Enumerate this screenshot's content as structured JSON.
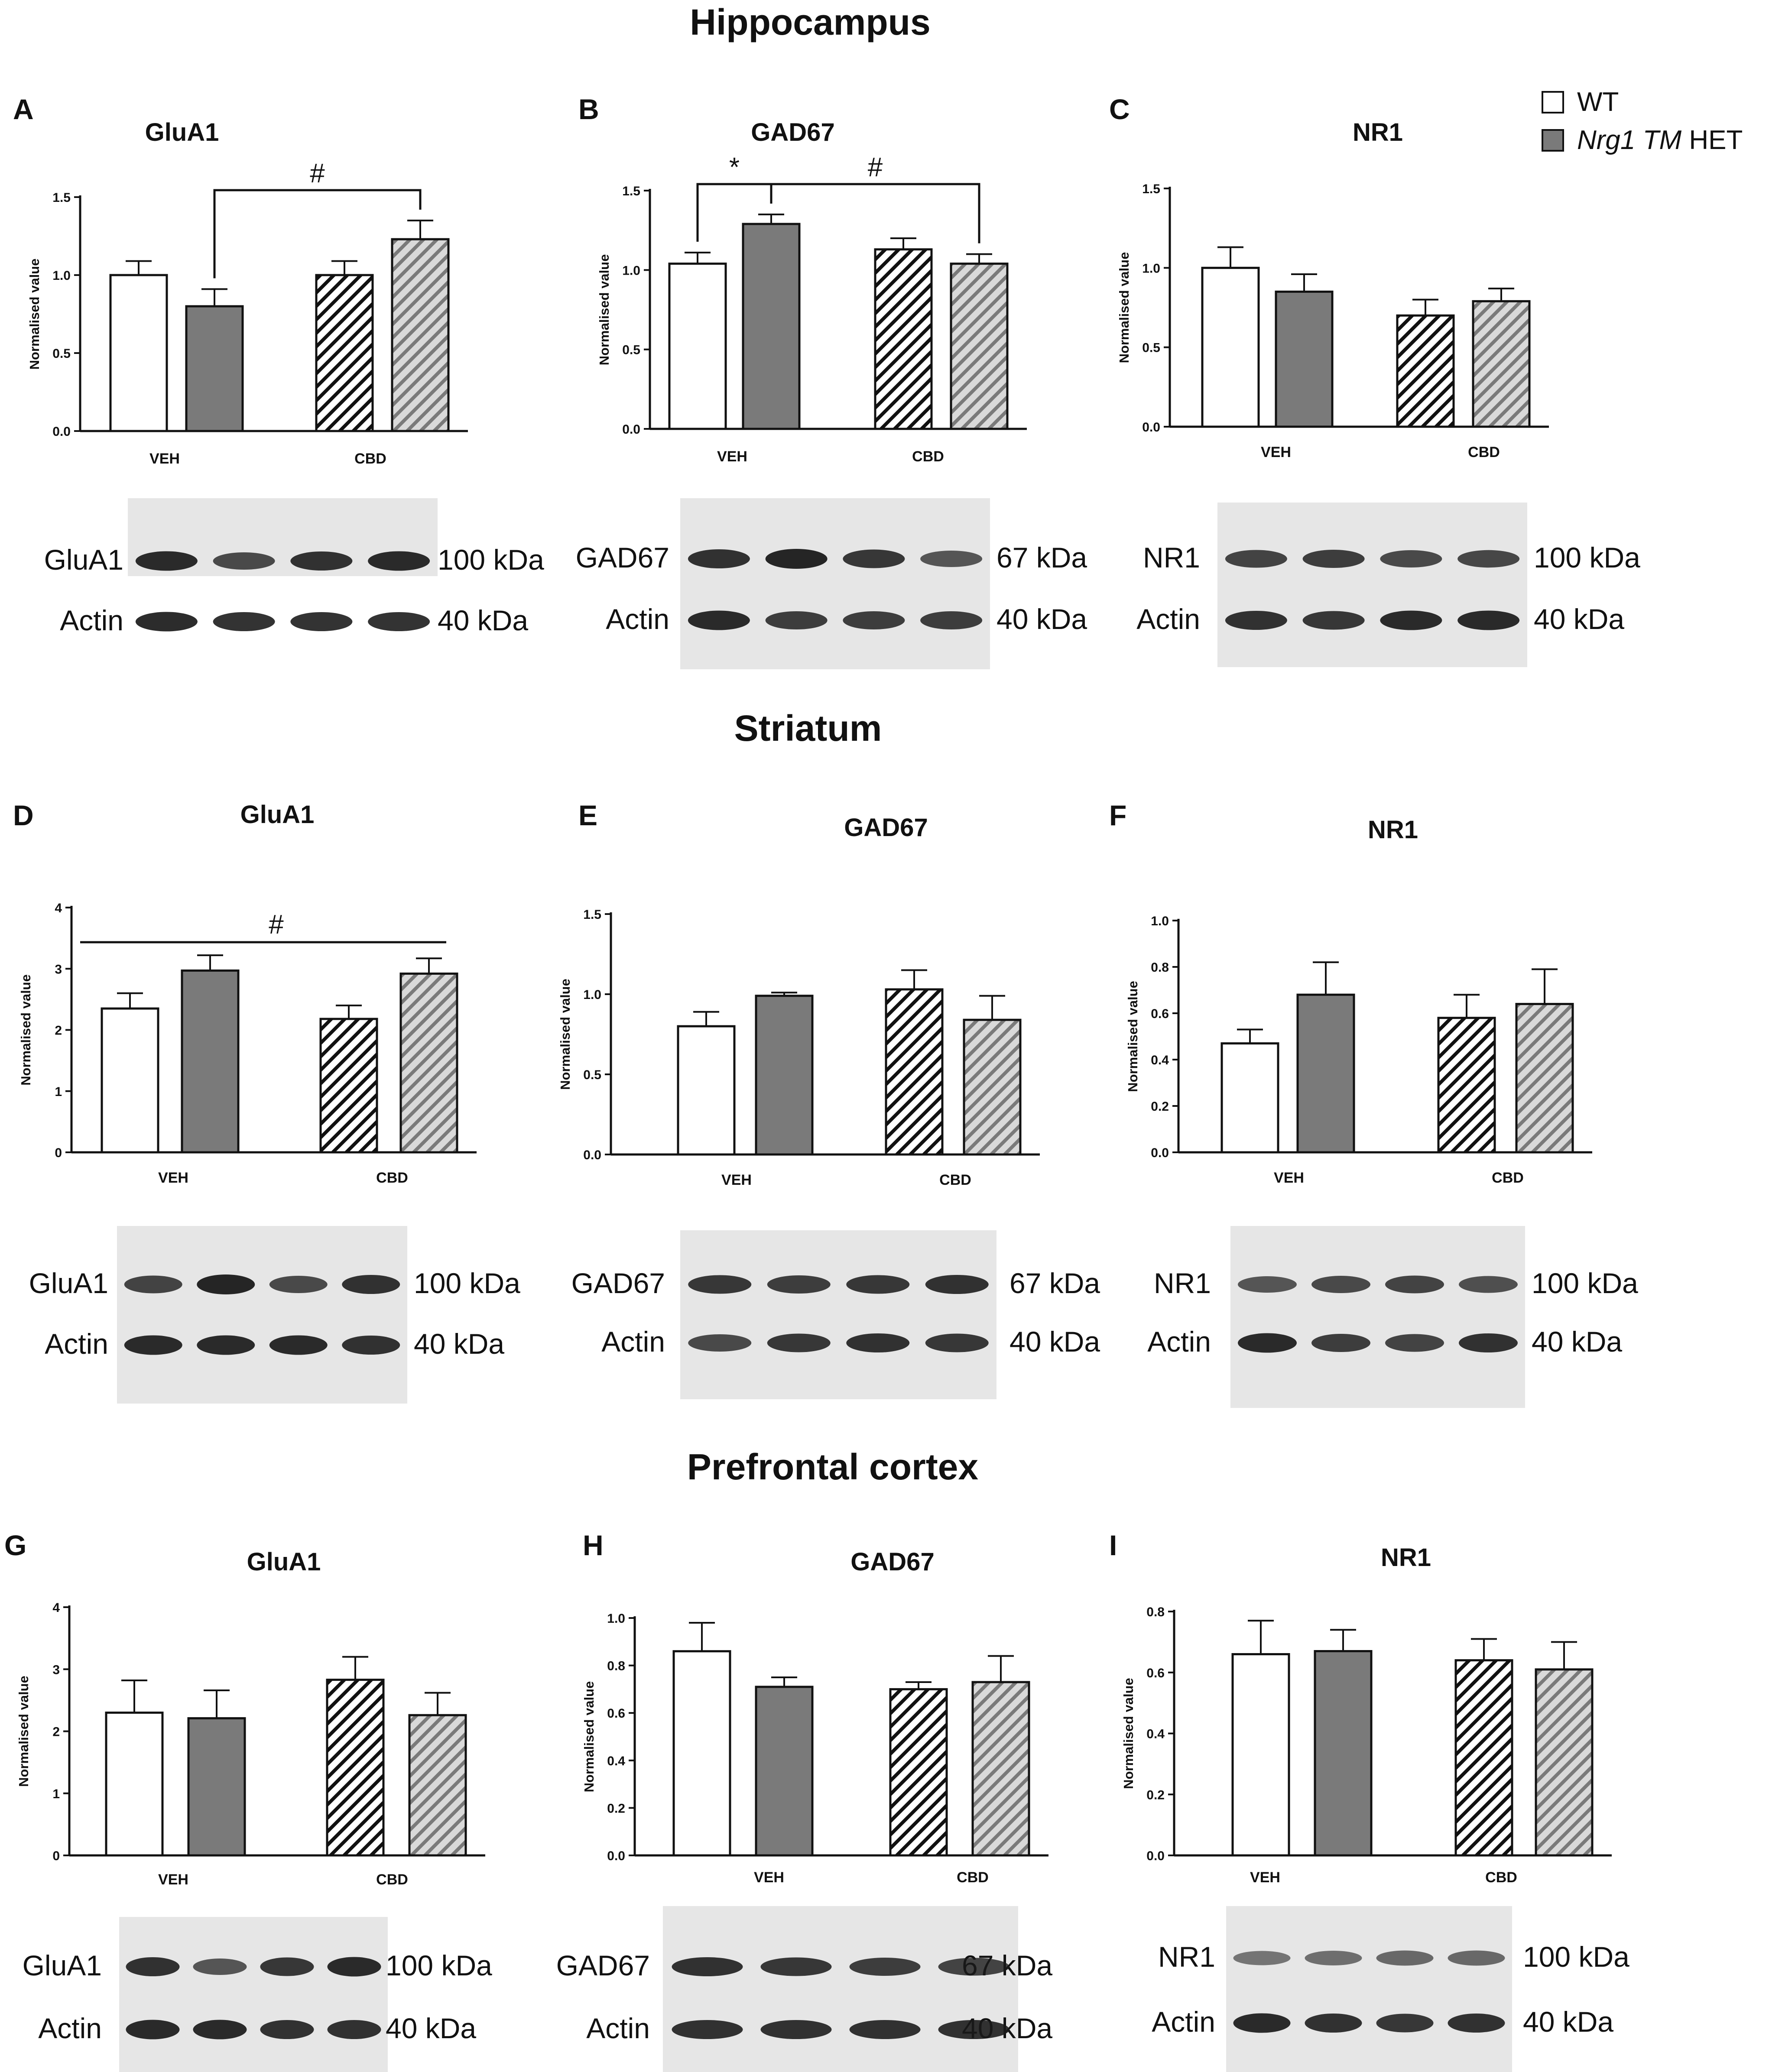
{
  "legend": {
    "items": [
      {
        "label": "WT",
        "fill": "white"
      },
      {
        "label_italic": "Nrg1 TM",
        "label_rest": " HET",
        "fill": "solid"
      }
    ]
  },
  "sections": [
    {
      "title": "Hippocampus"
    },
    {
      "title": "Striatum"
    },
    {
      "title": "Prefrontal cortex"
    }
  ],
  "colors": {
    "bar_gray": "#7a7a7a",
    "stroke": "#111111",
    "blot_background": "#e6e6e6",
    "band": "#1a1a1a"
  },
  "chart_data": [
    {
      "panel": "A",
      "title": "GluA1",
      "type": "bar",
      "ylabel": "Normalised value",
      "yticks": [
        0.0,
        0.5,
        1.0,
        1.5
      ],
      "ytick_labels": [
        "0.0",
        "0.5",
        "1.0",
        "1.5"
      ],
      "ylim": [
        0,
        1.5
      ],
      "categories": [
        "VEH",
        "CBD"
      ],
      "series": [
        {
          "name": "WT",
          "values": [
            1.0,
            1.0
          ],
          "errors": [
            0.09,
            0.09
          ]
        },
        {
          "name": "Nrg1 TM HET",
          "values": [
            0.8,
            1.23
          ],
          "errors": [
            0.11,
            0.12
          ]
        }
      ],
      "annotations": [
        {
          "type": "bracket",
          "label": "#",
          "from_bar": 1,
          "to_bar": 3
        }
      ]
    },
    {
      "panel": "B",
      "title": "GAD67",
      "type": "bar",
      "ylabel": "Normalised value",
      "yticks": [
        0.0,
        0.5,
        1.0,
        1.5
      ],
      "ytick_labels": [
        "0.0",
        "0.5",
        "1.0",
        "1.5"
      ],
      "ylim": [
        0,
        1.5
      ],
      "categories": [
        "VEH",
        "CBD"
      ],
      "series": [
        {
          "name": "WT",
          "values": [
            1.04,
            1.13
          ],
          "errors": [
            0.07,
            0.07
          ]
        },
        {
          "name": "Nrg1 TM HET",
          "values": [
            1.29,
            1.04
          ],
          "errors": [
            0.06,
            0.06
          ]
        }
      ],
      "annotations": [
        {
          "type": "bracket",
          "label": "*",
          "from_bar": 0,
          "to_bar": 1
        },
        {
          "type": "bracket",
          "label": "#",
          "from_bar": 1,
          "to_bar": 3
        }
      ]
    },
    {
      "panel": "C",
      "title": "NR1",
      "type": "bar",
      "ylabel": "Normalised value",
      "yticks": [
        0.0,
        0.5,
        1.0,
        1.5
      ],
      "ytick_labels": [
        "0.0",
        "0.5",
        "1.0",
        "1.5"
      ],
      "ylim": [
        0,
        1.5
      ],
      "categories": [
        "VEH",
        "CBD"
      ],
      "series": [
        {
          "name": "WT",
          "values": [
            1.0,
            0.7
          ],
          "errors": [
            0.13,
            0.1
          ]
        },
        {
          "name": "Nrg1 TM HET",
          "values": [
            0.85,
            0.79
          ],
          "errors": [
            0.11,
            0.08
          ]
        }
      ],
      "annotations": []
    },
    {
      "panel": "D",
      "title": "GluA1",
      "type": "bar",
      "ylabel": "Normalised value",
      "yticks": [
        0,
        1,
        2,
        3,
        4
      ],
      "ytick_labels": [
        "0",
        "1",
        "2",
        "3",
        "4"
      ],
      "ylim": [
        0,
        4
      ],
      "categories": [
        "VEH",
        "CBD"
      ],
      "series": [
        {
          "name": "WT",
          "values": [
            2.35,
            2.18
          ],
          "errors": [
            0.25,
            0.22
          ]
        },
        {
          "name": "Nrg1 TM HET",
          "values": [
            2.97,
            2.92
          ],
          "errors": [
            0.25,
            0.25
          ]
        }
      ],
      "annotations": [
        {
          "type": "line",
          "label": "#",
          "from_bar": 0,
          "to_bar": 3
        }
      ]
    },
    {
      "panel": "E",
      "title": "GAD67",
      "type": "bar",
      "ylabel": "Normalised value",
      "yticks": [
        0.0,
        0.5,
        1.0,
        1.5
      ],
      "ytick_labels": [
        "0.0",
        "0.5",
        "1.0",
        "1.5"
      ],
      "ylim": [
        0,
        1.5
      ],
      "categories": [
        "VEH",
        "CBD"
      ],
      "series": [
        {
          "name": "WT",
          "values": [
            0.8,
            1.03
          ],
          "errors": [
            0.09,
            0.12
          ]
        },
        {
          "name": "Nrg1 TM HET",
          "values": [
            0.99,
            0.84
          ],
          "errors": [
            0.02,
            0.15
          ]
        }
      ],
      "annotations": []
    },
    {
      "panel": "F",
      "title": "NR1",
      "type": "bar",
      "ylabel": "Normalised value",
      "yticks": [
        0.0,
        0.2,
        0.4,
        0.6,
        0.8,
        1.0
      ],
      "ytick_labels": [
        "0.0",
        "0.2",
        "0.4",
        "0.6",
        "0.8",
        "1.0"
      ],
      "ylim": [
        0,
        1.0
      ],
      "categories": [
        "VEH",
        "CBD"
      ],
      "series": [
        {
          "name": "WT",
          "values": [
            0.47,
            0.58
          ],
          "errors": [
            0.06,
            0.1
          ]
        },
        {
          "name": "Nrg1 TM HET",
          "values": [
            0.68,
            0.64
          ],
          "errors": [
            0.14,
            0.15
          ]
        }
      ],
      "annotations": []
    },
    {
      "panel": "G",
      "title": "GluA1",
      "type": "bar",
      "ylabel": "Normalised value",
      "yticks": [
        0,
        1,
        2,
        3,
        4
      ],
      "ytick_labels": [
        "0",
        "1",
        "2",
        "3",
        "4"
      ],
      "ylim": [
        0,
        4
      ],
      "categories": [
        "VEH",
        "CBD"
      ],
      "series": [
        {
          "name": "WT",
          "values": [
            2.3,
            2.83
          ],
          "errors": [
            0.52,
            0.37
          ]
        },
        {
          "name": "Nrg1 TM HET",
          "values": [
            2.21,
            2.26
          ],
          "errors": [
            0.45,
            0.36
          ]
        }
      ],
      "annotations": []
    },
    {
      "panel": "H",
      "title": "GAD67",
      "type": "bar",
      "ylabel": "Normalised value",
      "yticks": [
        0.0,
        0.2,
        0.4,
        0.6,
        0.8,
        1.0
      ],
      "ytick_labels": [
        "0.0",
        "0.2",
        "0.4",
        "0.6",
        "0.8",
        "1.0"
      ],
      "ylim": [
        0,
        1.0
      ],
      "categories": [
        "VEH",
        "CBD"
      ],
      "series": [
        {
          "name": "WT",
          "values": [
            0.86,
            0.7
          ],
          "errors": [
            0.12,
            0.03
          ]
        },
        {
          "name": "Nrg1 TM HET",
          "values": [
            0.71,
            0.73
          ],
          "errors": [
            0.04,
            0.11
          ]
        }
      ],
      "annotations": []
    },
    {
      "panel": "I",
      "title": "NR1",
      "type": "bar",
      "ylabel": "Normalised value",
      "yticks": [
        0.0,
        0.2,
        0.4,
        0.6,
        0.8
      ],
      "ytick_labels": [
        "0.0",
        "0.2",
        "0.4",
        "0.6",
        "0.8"
      ],
      "ylim": [
        0,
        0.8
      ],
      "categories": [
        "VEH",
        "CBD"
      ],
      "series": [
        {
          "name": "WT",
          "values": [
            0.66,
            0.64
          ],
          "errors": [
            0.11,
            0.07
          ]
        },
        {
          "name": "Nrg1 TM HET",
          "values": [
            0.67,
            0.61
          ],
          "errors": [
            0.07,
            0.09
          ]
        }
      ],
      "annotations": []
    }
  ],
  "blots": [
    {
      "panel": "A",
      "rows": [
        {
          "protein": "GluA1",
          "size": "100 kDa",
          "band_intensity": [
            0.95,
            0.7,
            0.9,
            0.95
          ]
        },
        {
          "protein": "Actin",
          "size": "40 kDa",
          "band_intensity": [
            0.95,
            0.9,
            0.9,
            0.9
          ]
        }
      ]
    },
    {
      "panel": "B",
      "rows": [
        {
          "protein": "GAD67",
          "size": "67 kDa",
          "band_intensity": [
            0.9,
            1.0,
            0.85,
            0.6
          ]
        },
        {
          "protein": "Actin",
          "size": "40 kDa",
          "band_intensity": [
            0.95,
            0.8,
            0.8,
            0.8
          ]
        }
      ]
    },
    {
      "panel": "C",
      "rows": [
        {
          "protein": "NR1",
          "size": "100 kDa",
          "band_intensity": [
            0.75,
            0.8,
            0.7,
            0.72
          ]
        },
        {
          "protein": "Actin",
          "size": "40 kDa",
          "band_intensity": [
            0.9,
            0.85,
            0.95,
            0.95
          ]
        }
      ]
    },
    {
      "panel": "D",
      "rows": [
        {
          "protein": "GluA1",
          "size": "100 kDa",
          "band_intensity": [
            0.75,
            1.0,
            0.7,
            0.9
          ]
        },
        {
          "protein": "Actin",
          "size": "40 kDa",
          "band_intensity": [
            0.95,
            0.95,
            0.95,
            0.9
          ]
        }
      ]
    },
    {
      "panel": "E",
      "rows": [
        {
          "protein": "GAD67",
          "size": "67 kDa",
          "band_intensity": [
            0.85,
            0.8,
            0.85,
            0.9
          ]
        },
        {
          "protein": "Actin",
          "size": "40 kDa",
          "band_intensity": [
            0.7,
            0.85,
            0.9,
            0.85
          ]
        }
      ]
    },
    {
      "panel": "F",
      "rows": [
        {
          "protein": "NR1",
          "size": "100 kDa",
          "band_intensity": [
            0.6,
            0.7,
            0.75,
            0.65
          ]
        },
        {
          "protein": "Actin",
          "size": "40 kDa",
          "band_intensity": [
            0.95,
            0.8,
            0.75,
            0.9
          ]
        }
      ]
    },
    {
      "panel": "G",
      "rows": [
        {
          "protein": "GluA1",
          "size": "100 kDa",
          "band_intensity": [
            0.9,
            0.6,
            0.85,
            0.95
          ]
        },
        {
          "protein": "Actin",
          "size": "40 kDa",
          "band_intensity": [
            0.95,
            0.95,
            0.9,
            0.9
          ]
        }
      ]
    },
    {
      "panel": "H",
      "rows": [
        {
          "protein": "GAD67",
          "size": "67 kDa",
          "band_intensity": [
            0.9,
            0.85,
            0.8,
            0.75
          ]
        },
        {
          "protein": "Actin",
          "size": "40 kDa",
          "band_intensity": [
            0.9,
            0.9,
            0.9,
            0.9
          ]
        }
      ]
    },
    {
      "panel": "I",
      "rows": [
        {
          "protein": "NR1",
          "size": "100 kDa",
          "band_intensity": [
            0.35,
            0.4,
            0.45,
            0.45
          ]
        },
        {
          "protein": "Actin",
          "size": "40 kDa",
          "band_intensity": [
            0.95,
            0.9,
            0.85,
            0.9
          ]
        }
      ]
    }
  ]
}
